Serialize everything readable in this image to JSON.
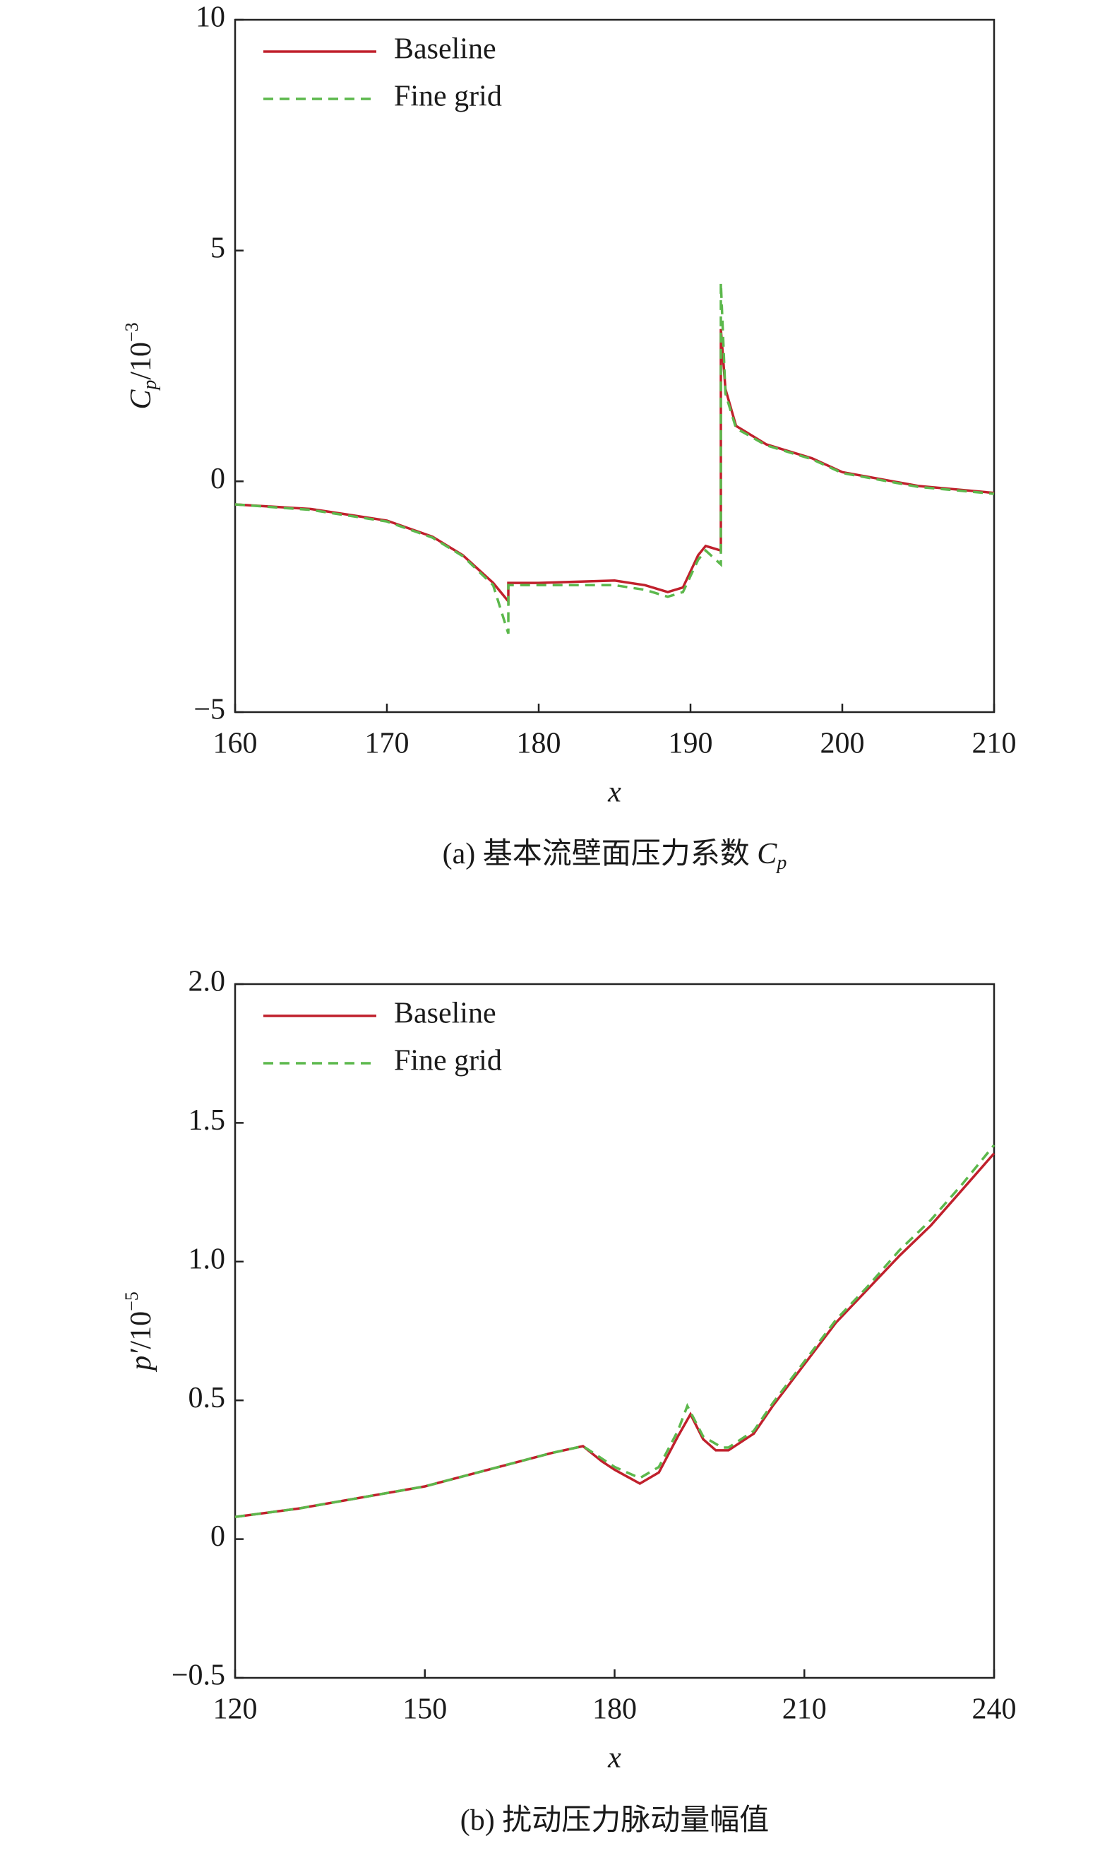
{
  "chart_data": [
    {
      "type": "line",
      "ylabel_parts": [
        "C",
        "p",
        "/10",
        "−3"
      ],
      "xlabel": "x",
      "caption_parts": [
        "(a) 基本流壁面压力系数 ",
        "C",
        "p"
      ],
      "xlim": [
        160,
        210
      ],
      "xticks": [
        160,
        170,
        180,
        190,
        200,
        210
      ],
      "ylim": [
        -5,
        10
      ],
      "yticks": [
        {
          "value": -5,
          "label": "−5"
        },
        0,
        5,
        10
      ],
      "legend": "upper left",
      "series": [
        {
          "name": "Baseline",
          "color": "#c0202c",
          "style": "solid",
          "x": [
            160,
            165,
            170,
            173,
            175,
            177,
            178,
            178,
            180,
            185,
            187,
            188.5,
            189.5,
            190.5,
            191,
            192,
            192,
            192.3,
            193,
            195,
            198,
            200,
            205,
            210
          ],
          "values": [
            -0.5,
            -0.6,
            -0.85,
            -1.2,
            -1.6,
            -2.2,
            -2.6,
            -2.2,
            -2.2,
            -2.15,
            -2.25,
            -2.4,
            -2.3,
            -1.6,
            -1.4,
            -1.5,
            3.3,
            2.0,
            1.2,
            0.8,
            0.5,
            0.2,
            -0.1,
            -0.25
          ]
        },
        {
          "name": "Fine grid",
          "color": "#5cb84c",
          "style": "dashed",
          "x": [
            160,
            165,
            170,
            173,
            175,
            177,
            178,
            178,
            180,
            185,
            187,
            188.5,
            189.5,
            190.5,
            191,
            192,
            192,
            192.3,
            193,
            195,
            198,
            200,
            205,
            210
          ],
          "values": [
            -0.5,
            -0.62,
            -0.87,
            -1.22,
            -1.62,
            -2.25,
            -3.3,
            -2.25,
            -2.25,
            -2.25,
            -2.35,
            -2.5,
            -2.4,
            -1.7,
            -1.5,
            -1.8,
            4.3,
            1.9,
            1.15,
            0.78,
            0.48,
            0.18,
            -0.12,
            -0.27
          ]
        }
      ]
    },
    {
      "type": "line",
      "ylabel_parts": [
        "p′",
        "/10",
        "−5"
      ],
      "xlabel": "x",
      "caption_parts": [
        "(b) 扰动压力脉动量幅值"
      ],
      "xlim": [
        120,
        240
      ],
      "xticks": [
        120,
        150,
        180,
        210,
        240
      ],
      "ylim": [
        -0.5,
        2.0
      ],
      "yticks": [
        {
          "value": -0.5,
          "label": "−0.5"
        },
        0,
        0.5,
        {
          "value": 1.0,
          "label": "1.0"
        },
        1.5,
        {
          "value": 2.0,
          "label": "2.0"
        }
      ],
      "legend": "upper left",
      "series": [
        {
          "name": "Baseline",
          "color": "#c0202c",
          "style": "solid",
          "x": [
            120,
            130,
            140,
            150,
            160,
            170,
            175,
            178,
            180,
            184,
            187,
            190,
            192,
            194,
            196,
            198,
            202,
            205,
            210,
            215,
            220,
            225,
            230,
            235,
            240
          ],
          "values": [
            0.08,
            0.11,
            0.15,
            0.19,
            0.25,
            0.31,
            0.335,
            0.28,
            0.25,
            0.2,
            0.24,
            0.37,
            0.45,
            0.36,
            0.32,
            0.32,
            0.38,
            0.48,
            0.63,
            0.78,
            0.9,
            1.02,
            1.13,
            1.26,
            1.39
          ]
        },
        {
          "name": "Fine grid",
          "color": "#5cb84c",
          "style": "dashed",
          "x": [
            120,
            130,
            140,
            150,
            160,
            170,
            175,
            178,
            180,
            184,
            187,
            190,
            191.5,
            194,
            197,
            198,
            202,
            205,
            210,
            215,
            220,
            225,
            230,
            235,
            240
          ],
          "values": [
            0.08,
            0.11,
            0.15,
            0.19,
            0.25,
            0.31,
            0.335,
            0.29,
            0.26,
            0.22,
            0.26,
            0.39,
            0.48,
            0.37,
            0.33,
            0.33,
            0.39,
            0.49,
            0.64,
            0.79,
            0.91,
            1.04,
            1.15,
            1.28,
            1.42
          ]
        }
      ]
    }
  ]
}
